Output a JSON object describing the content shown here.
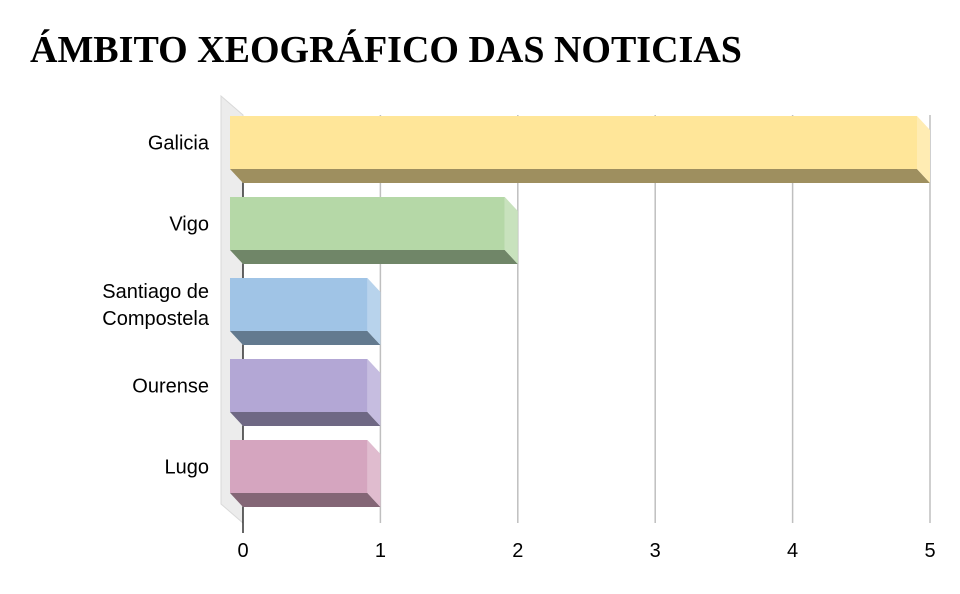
{
  "chart_data": {
    "type": "bar",
    "orientation": "horizontal",
    "style": "3d",
    "title": "ÁMBITO XEOGRÁFICO DAS NOTICIAS",
    "categories": [
      "Galicia",
      "Vigo",
      [
        "Santiago de",
        "Compostela"
      ],
      "Ourense",
      "Lugo"
    ],
    "values": [
      5,
      2,
      1,
      1,
      1
    ],
    "colors": [
      "#FFE699",
      "#B5D8A7",
      "#A0C4E6",
      "#B3A7D5",
      "#D5A5BF"
    ],
    "xlim": [
      0,
      5
    ],
    "xticks": [
      "0",
      "1",
      "2",
      "3",
      "4",
      "5"
    ],
    "grid": true,
    "legend": false
  }
}
